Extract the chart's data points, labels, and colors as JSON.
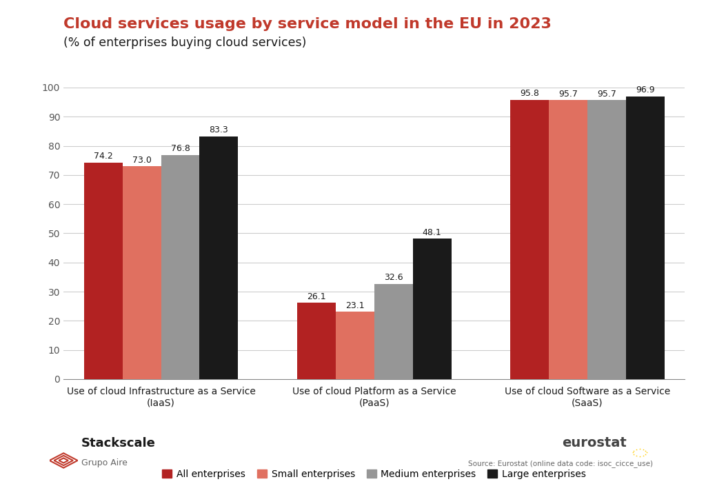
{
  "title_line1": "Cloud services usage by service model in the EU in 2023",
  "title_line2": "(% of enterprises buying cloud services)",
  "categories": [
    "Use of cloud Infrastructure as a Service\n(IaaS)",
    "Use of cloud Platform as a Service\n(PaaS)",
    "Use of cloud Software as a Service\n(SaaS)"
  ],
  "series": {
    "All enterprises": [
      74.2,
      26.1,
      95.8
    ],
    "Small enterprises": [
      73.0,
      23.1,
      95.7
    ],
    "Medium enterprises": [
      76.8,
      32.6,
      95.7
    ],
    "Large enterprises": [
      83.3,
      48.1,
      96.9
    ]
  },
  "colors": {
    "All enterprises": "#b22222",
    "Small enterprises": "#e07060",
    "Medium enterprises": "#969696",
    "Large enterprises": "#1a1a1a"
  },
  "ylim": [
    0,
    100
  ],
  "yticks": [
    0,
    10,
    20,
    30,
    40,
    50,
    60,
    70,
    80,
    90,
    100
  ],
  "title_color": "#c0392b",
  "subtitle_color": "#1a1a1a",
  "bar_label_fontsize": 9,
  "legend_labels": [
    "All enterprises",
    "Small enterprises",
    "Medium enterprises",
    "Large enterprises"
  ],
  "source_text": "Source: Eurostat (online data code: isoc_cicce_use)",
  "eurostat_text": "eurostat",
  "background_color": "#ffffff"
}
